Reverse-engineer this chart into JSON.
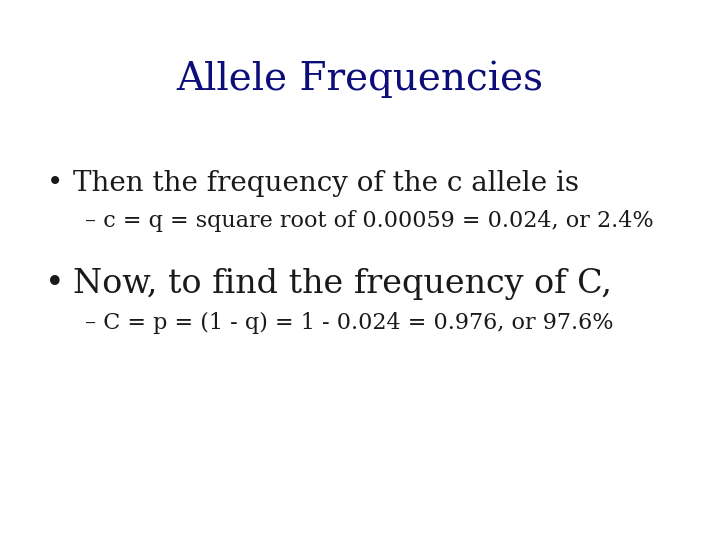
{
  "title": "Allele Frequencies",
  "title_color": "#0d0d7a",
  "title_fontsize": 28,
  "background_color": "#ffffff",
  "bullet1_text": "Then the frequency of the c allele is",
  "bullet1_fontsize": 20,
  "sub1_text": "– c = q = square root of 0.00059 = 0.024, or 2.4%",
  "sub1_fontsize": 16,
  "bullet2_text": "Now, to find the frequency of C,",
  "bullet2_fontsize": 24,
  "sub2_text": "– C = p = (1 - q) = 1 - 0.024 = 0.976, or 97.6%",
  "sub2_fontsize": 16,
  "text_color": "#1a1a1a",
  "figwidth": 7.2,
  "figheight": 5.4,
  "dpi": 100
}
